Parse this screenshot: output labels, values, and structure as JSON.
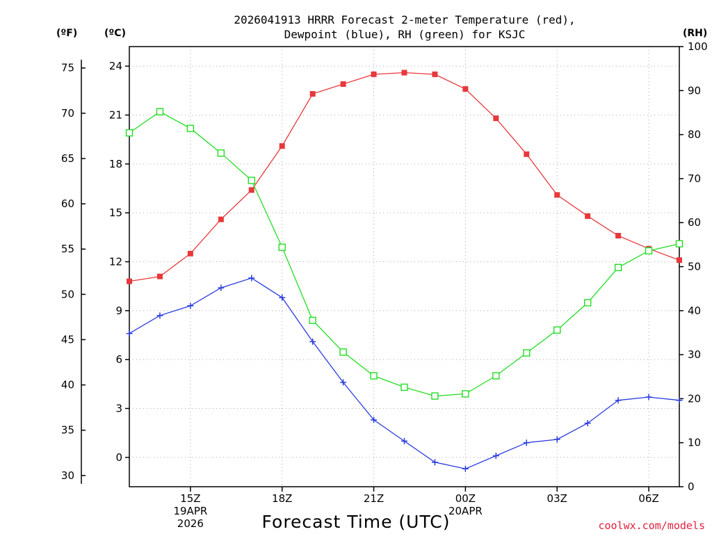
{
  "chart_data": {
    "type": "line",
    "title_lines": [
      "2026041913 HRRR Forecast 2-meter Temperature (red),",
      "Dewpoint (blue), RH (green) for KSJC"
    ],
    "xlabel": "Forecast Time (UTC)",
    "watermark": "coolwx.com/models",
    "unit_labels": {
      "fahrenheit": "(ºF)",
      "celsius": "(ºC)",
      "rh": "(RH)"
    },
    "x_hours": [
      13,
      14,
      15,
      16,
      17,
      18,
      19,
      20,
      21,
      22,
      23,
      24,
      25,
      26,
      27,
      28,
      29,
      30,
      31
    ],
    "x_ticks": [
      {
        "hour": 15,
        "lines": [
          "15Z",
          "19APR",
          "2026"
        ]
      },
      {
        "hour": 18,
        "lines": [
          "18Z"
        ]
      },
      {
        "hour": 21,
        "lines": [
          "21Z"
        ]
      },
      {
        "hour": 24,
        "lines": [
          "00Z",
          "20APR"
        ]
      },
      {
        "hour": 27,
        "lines": [
          "03Z"
        ]
      },
      {
        "hour": 30,
        "lines": [
          "06Z"
        ]
      }
    ],
    "xlim": [
      13,
      31
    ],
    "celsius_axis": {
      "ylim": [
        -1.8,
        25.2
      ],
      "ticks": [
        "0",
        "3",
        "6",
        "9",
        "12",
        "15",
        "18",
        "21",
        "24"
      ]
    },
    "fahrenheit_axis": {
      "ticks": [
        "30",
        "35",
        "40",
        "45",
        "50",
        "55",
        "60",
        "65",
        "70",
        "75"
      ]
    },
    "rh_axis": {
      "ylim": [
        0,
        100
      ],
      "ticks": [
        "0",
        "10",
        "20",
        "30",
        "40",
        "50",
        "60",
        "70",
        "80",
        "90",
        "100"
      ]
    },
    "series": [
      {
        "name": "Temperature",
        "units": "C",
        "color": "#e8383b",
        "marker": "filled-square",
        "values": [
          10.8,
          11.1,
          12.5,
          14.6,
          16.4,
          19.1,
          22.3,
          22.9,
          23.5,
          23.6,
          23.5,
          22.6,
          20.8,
          18.6,
          16.1,
          14.8,
          13.6,
          12.8,
          12.1
        ]
      },
      {
        "name": "Dewpoint",
        "units": "C",
        "color": "#2a3be0",
        "marker": "plus",
        "values": [
          7.6,
          8.7,
          9.3,
          10.4,
          11.0,
          9.8,
          7.1,
          4.6,
          2.3,
          1.0,
          -0.3,
          -0.7,
          0.1,
          0.9,
          1.1,
          2.1,
          3.5,
          3.7,
          3.5
        ]
      },
      {
        "name": "RH",
        "units": "%",
        "color": "#22dd22",
        "marker": "open-square",
        "values": [
          80.4,
          85.2,
          81.4,
          75.8,
          69.6,
          54.4,
          37.8,
          30.6,
          25.2,
          22.6,
          20.6,
          21.1,
          25.2,
          30.4,
          35.6,
          41.8,
          49.8,
          53.6,
          55.2
        ]
      }
    ],
    "grid": true
  }
}
